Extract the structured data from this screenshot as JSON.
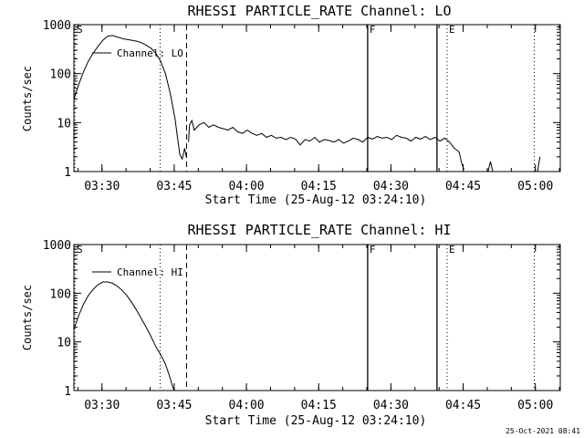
{
  "footer": {
    "timestamp": "25-Oct-2021 08:41"
  },
  "chart_data": [
    {
      "type": "line",
      "title": "RHESSI PARTICLE_RATE Channel: LO",
      "xlabel": "Start Time (25-Aug-12 03:24:10)",
      "ylabel": "Counts/sec",
      "x_unit": "minutes since 03:24:10",
      "xlim": [
        0,
        101
      ],
      "ylim": [
        1,
        1000
      ],
      "yscale": "log",
      "xticks": [
        {
          "t": 5.83,
          "label": "03:30"
        },
        {
          "t": 20.83,
          "label": "03:45"
        },
        {
          "t": 35.83,
          "label": "04:00"
        },
        {
          "t": 50.83,
          "label": "04:15"
        },
        {
          "t": 65.83,
          "label": "04:30"
        },
        {
          "t": 80.83,
          "label": "04:45"
        },
        {
          "t": 95.83,
          "label": "05:00"
        }
      ],
      "yticks": [
        {
          "v": 1,
          "label": "1"
        },
        {
          "v": 10,
          "label": "10"
        },
        {
          "v": 100,
          "label": "100"
        },
        {
          "v": 1000,
          "label": "1000"
        }
      ],
      "markers": [
        {
          "t": 0.2,
          "style": "dotted",
          "label": "S"
        },
        {
          "t": 17.9,
          "style": "dotted",
          "label": ""
        },
        {
          "t": 23.4,
          "style": "dashed",
          "label": ""
        },
        {
          "t": 61.0,
          "style": "solid",
          "label": "F"
        },
        {
          "t": 75.4,
          "style": "solid",
          "label": ""
        },
        {
          "t": 77.5,
          "style": "dotted",
          "label": "E"
        },
        {
          "t": 95.6,
          "style": "dotted",
          "label": ""
        }
      ],
      "legend": {
        "label": "Channel: LO",
        "position": "top-left"
      },
      "series": [
        {
          "name": "Channel: LO",
          "segments": [
            [
              [
                0,
                30
              ],
              [
                1,
                60
              ],
              [
                2,
                110
              ],
              [
                3,
                180
              ],
              [
                4,
                260
              ],
              [
                5,
                360
              ],
              [
                6,
                480
              ],
              [
                7,
                580
              ],
              [
                8,
                600
              ],
              [
                9,
                560
              ],
              [
                10,
                520
              ],
              [
                11,
                500
              ],
              [
                12,
                480
              ],
              [
                13,
                460
              ],
              [
                14,
                430
              ],
              [
                15,
                380
              ],
              [
                16,
                330
              ],
              [
                17,
                260
              ],
              [
                18,
                180
              ],
              [
                19,
                100
              ],
              [
                20,
                40
              ],
              [
                21,
                12
              ],
              [
                21.5,
                5
              ],
              [
                22,
                2.2
              ],
              [
                22.5,
                1.8
              ],
              [
                23,
                3
              ],
              [
                23.3,
                2
              ]
            ],
            [
              [
                23.8,
                4
              ],
              [
                24,
                9
              ],
              [
                24.5,
                11
              ],
              [
                25,
                7
              ],
              [
                26,
                9
              ],
              [
                27,
                10
              ],
              [
                28,
                8
              ],
              [
                29,
                9
              ],
              [
                30,
                8
              ],
              [
                31,
                7.5
              ],
              [
                32,
                7
              ],
              [
                33,
                8
              ],
              [
                34,
                6.5
              ],
              [
                35,
                6
              ],
              [
                36,
                7
              ],
              [
                37,
                6
              ],
              [
                38,
                5.5
              ],
              [
                39,
                6
              ],
              [
                40,
                5
              ],
              [
                41,
                5.5
              ],
              [
                42,
                4.8
              ],
              [
                43,
                5
              ],
              [
                44,
                4.5
              ],
              [
                45,
                5
              ],
              [
                46,
                4.6
              ],
              [
                47,
                3.5
              ],
              [
                48,
                4.5
              ],
              [
                49,
                4.2
              ],
              [
                50,
                5
              ],
              [
                51,
                4
              ],
              [
                52,
                4.5
              ],
              [
                53,
                4.3
              ],
              [
                54,
                4
              ],
              [
                55,
                4.5
              ],
              [
                56,
                3.8
              ],
              [
                57,
                4.2
              ],
              [
                58,
                4.8
              ],
              [
                59,
                4.5
              ],
              [
                60,
                4
              ],
              [
                61,
                5
              ],
              [
                62,
                4.6
              ],
              [
                63,
                5.2
              ],
              [
                64,
                4.8
              ],
              [
                65,
                5
              ],
              [
                66,
                4.5
              ],
              [
                67,
                5.5
              ],
              [
                68,
                5
              ],
              [
                69,
                4.8
              ],
              [
                70,
                4.2
              ],
              [
                71,
                5
              ],
              [
                72,
                4.6
              ],
              [
                73,
                5.2
              ],
              [
                74,
                4.5
              ],
              [
                75,
                5
              ],
              [
                76,
                4.2
              ],
              [
                77,
                4.8
              ],
              [
                78,
                4
              ],
              [
                79,
                3
              ],
              [
                80,
                2.5
              ],
              [
                80.5,
                1.5
              ],
              [
                81,
                1.1
              ]
            ],
            [
              [
                86,
                1
              ],
              [
                86.5,
                1.6
              ],
              [
                87,
                1
              ]
            ],
            [
              [
                96.3,
                1
              ],
              [
                96.6,
                1.6
              ],
              [
                96.8,
                2
              ]
            ]
          ]
        }
      ]
    },
    {
      "type": "line",
      "title": "RHESSI PARTICLE_RATE Channel: HI",
      "xlabel": "Start Time (25-Aug-12 03:24:10)",
      "ylabel": "Counts/sec",
      "x_unit": "minutes since 03:24:10",
      "xlim": [
        0,
        101
      ],
      "ylim": [
        1,
        1000
      ],
      "yscale": "log",
      "xticks": [
        {
          "t": 5.83,
          "label": "03:30"
        },
        {
          "t": 20.83,
          "label": "03:45"
        },
        {
          "t": 35.83,
          "label": "04:00"
        },
        {
          "t": 50.83,
          "label": "04:15"
        },
        {
          "t": 65.83,
          "label": "04:30"
        },
        {
          "t": 80.83,
          "label": "04:45"
        },
        {
          "t": 95.83,
          "label": "05:00"
        }
      ],
      "yticks": [
        {
          "v": 1,
          "label": "1"
        },
        {
          "v": 10,
          "label": "10"
        },
        {
          "v": 100,
          "label": "100"
        },
        {
          "v": 1000,
          "label": "1000"
        }
      ],
      "markers": [
        {
          "t": 0.2,
          "style": "dotted",
          "label": "S"
        },
        {
          "t": 17.9,
          "style": "dotted",
          "label": ""
        },
        {
          "t": 23.4,
          "style": "dashed",
          "label": ""
        },
        {
          "t": 61.0,
          "style": "solid",
          "label": "F"
        },
        {
          "t": 75.4,
          "style": "solid",
          "label": ""
        },
        {
          "t": 77.5,
          "style": "dotted",
          "label": "E"
        },
        {
          "t": 95.6,
          "style": "dotted",
          "label": ""
        }
      ],
      "legend": {
        "label": "Channel: HI",
        "position": "top-left"
      },
      "series": [
        {
          "name": "Channel: HI",
          "segments": [
            [
              [
                0,
                18
              ],
              [
                1,
                35
              ],
              [
                2,
                60
              ],
              [
                3,
                90
              ],
              [
                4,
                120
              ],
              [
                5,
                150
              ],
              [
                6,
                170
              ],
              [
                7,
                170
              ],
              [
                8,
                160
              ],
              [
                9,
                140
              ],
              [
                10,
                115
              ],
              [
                11,
                90
              ],
              [
                12,
                65
              ],
              [
                13,
                45
              ],
              [
                14,
                30
              ],
              [
                15,
                20
              ],
              [
                16,
                13
              ],
              [
                17,
                8
              ],
              [
                18,
                5.5
              ],
              [
                19,
                3.5
              ],
              [
                20,
                1.8
              ],
              [
                20.5,
                1.2
              ],
              [
                21,
                0.9
              ]
            ]
          ]
        }
      ]
    }
  ]
}
